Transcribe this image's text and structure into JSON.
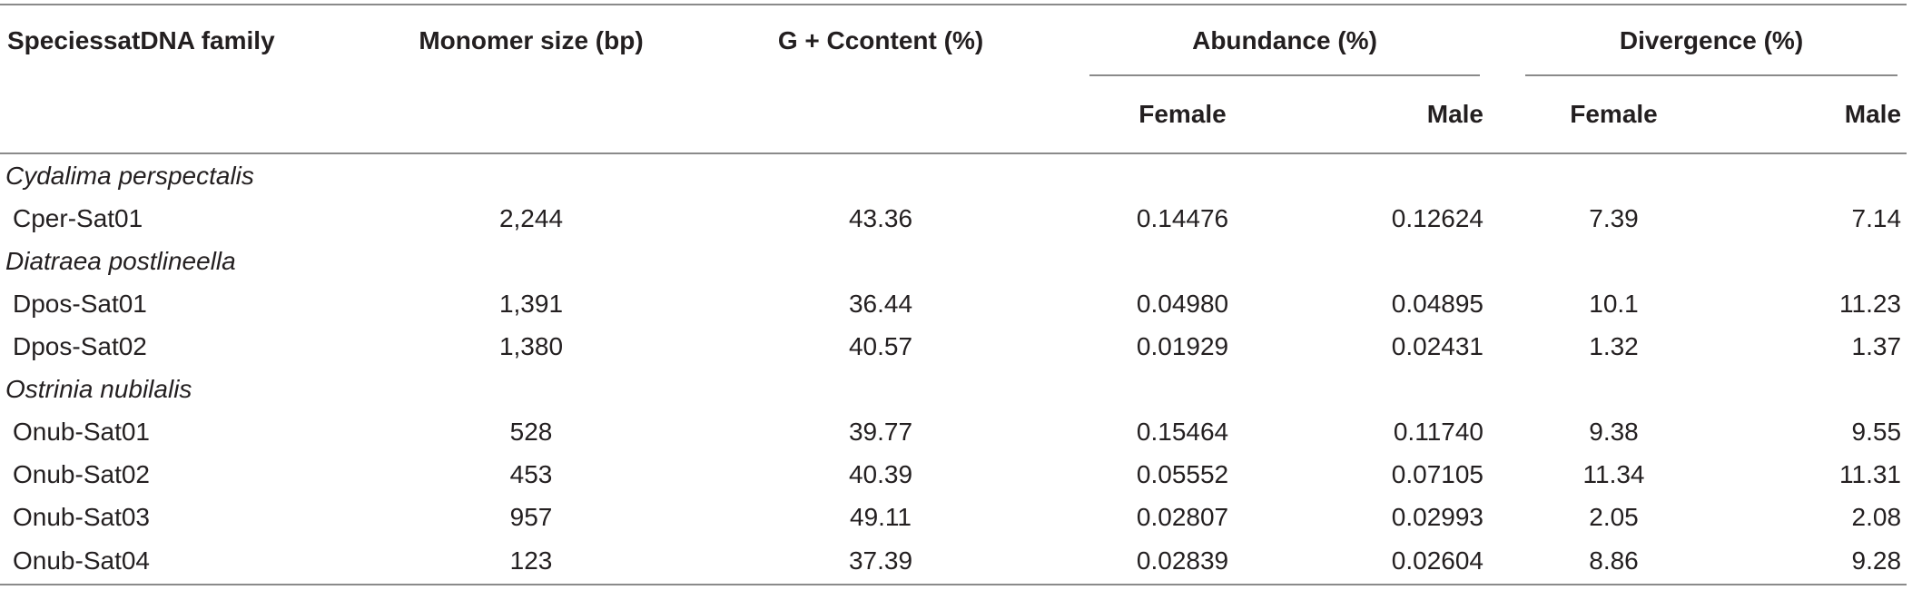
{
  "table": {
    "headers": {
      "species": "SpeciessatDNA family",
      "monomer": "Monomer size (bp)",
      "gc": "G + Ccontent (%)",
      "abundance": "Abundance (%)",
      "divergence": "Divergence (%)",
      "female": "Female",
      "male": "Male"
    },
    "groups": [
      {
        "species": "Cydalima perspectalis",
        "rows": [
          {
            "family": "Cper-Sat01",
            "monomer": "2,244",
            "gc": "43.36",
            "ab_f": "0.14476",
            "ab_m": "0.12624",
            "dv_f": "7.39",
            "dv_m": "7.14"
          }
        ]
      },
      {
        "species": "Diatraea postlineella",
        "rows": [
          {
            "family": "Dpos-Sat01",
            "monomer": "1,391",
            "gc": "36.44",
            "ab_f": "0.04980",
            "ab_m": "0.04895",
            "dv_f": "10.1",
            "dv_m": "11.23"
          },
          {
            "family": "Dpos-Sat02",
            "monomer": "1,380",
            "gc": "40.57",
            "ab_f": "0.01929",
            "ab_m": "0.02431",
            "dv_f": "1.32",
            "dv_m": "1.37"
          }
        ]
      },
      {
        "species": "Ostrinia nubilalis",
        "rows": [
          {
            "family": "Onub-Sat01",
            "monomer": "528",
            "gc": "39.77",
            "ab_f": "0.15464",
            "ab_m": "0.11740",
            "dv_f": "9.38",
            "dv_m": "9.55"
          },
          {
            "family": "Onub-Sat02",
            "monomer": "453",
            "gc": "40.39",
            "ab_f": "0.05552",
            "ab_m": "0.07105",
            "dv_f": "11.34",
            "dv_m": "11.31"
          },
          {
            "family": "Onub-Sat03",
            "monomer": "957",
            "gc": "49.11",
            "ab_f": "0.02807",
            "ab_m": "0.02993",
            "dv_f": "2.05",
            "dv_m": "2.08"
          },
          {
            "family": "Onub-Sat04",
            "monomer": "123",
            "gc": "37.39",
            "ab_f": "0.02839",
            "ab_m": "0.02604",
            "dv_f": "8.86",
            "dv_m": "9.28"
          }
        ]
      }
    ]
  }
}
